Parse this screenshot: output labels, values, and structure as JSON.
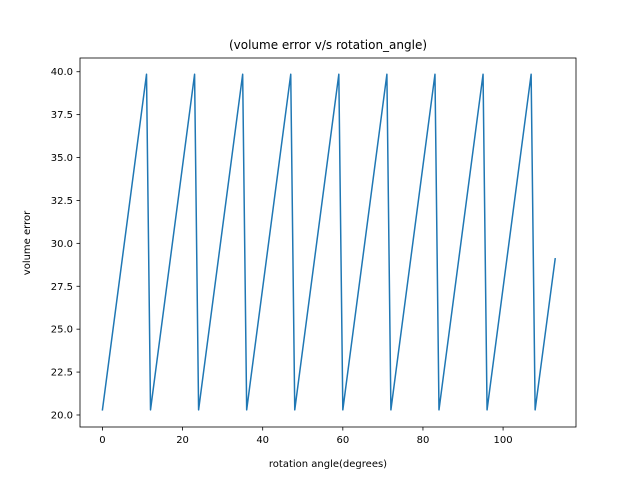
{
  "chart_data": {
    "type": "line",
    "title": "(volume error v/s rotation_angle)",
    "xlabel": "rotation angle(degrees)",
    "ylabel": "volume error",
    "xlim": [
      -5.6,
      118.2
    ],
    "ylim": [
      19.3,
      40.8
    ],
    "xticks": [
      0,
      20,
      40,
      60,
      80,
      100
    ],
    "xtick_labels": [
      "0",
      "20",
      "40",
      "60",
      "80",
      "100"
    ],
    "yticks": [
      20.0,
      22.5,
      25.0,
      27.5,
      30.0,
      32.5,
      35.0,
      37.5,
      40.0
    ],
    "ytick_labels": [
      "20.0",
      "22.5",
      "25.0",
      "27.5",
      "30.0",
      "32.5",
      "35.0",
      "37.5",
      "40.0"
    ],
    "grid": false,
    "series": [
      {
        "color": "#1f77b4",
        "x": [
          0,
          11,
          12,
          23,
          24,
          35,
          36,
          47,
          48,
          59,
          60,
          71,
          72,
          83,
          84,
          95,
          96,
          107,
          108,
          113
        ],
        "y": [
          20.3,
          39.85,
          20.3,
          39.85,
          20.3,
          39.85,
          20.3,
          39.85,
          20.3,
          39.85,
          20.3,
          39.85,
          20.3,
          39.85,
          20.3,
          39.85,
          20.3,
          39.85,
          20.3,
          29.1
        ]
      }
    ]
  }
}
